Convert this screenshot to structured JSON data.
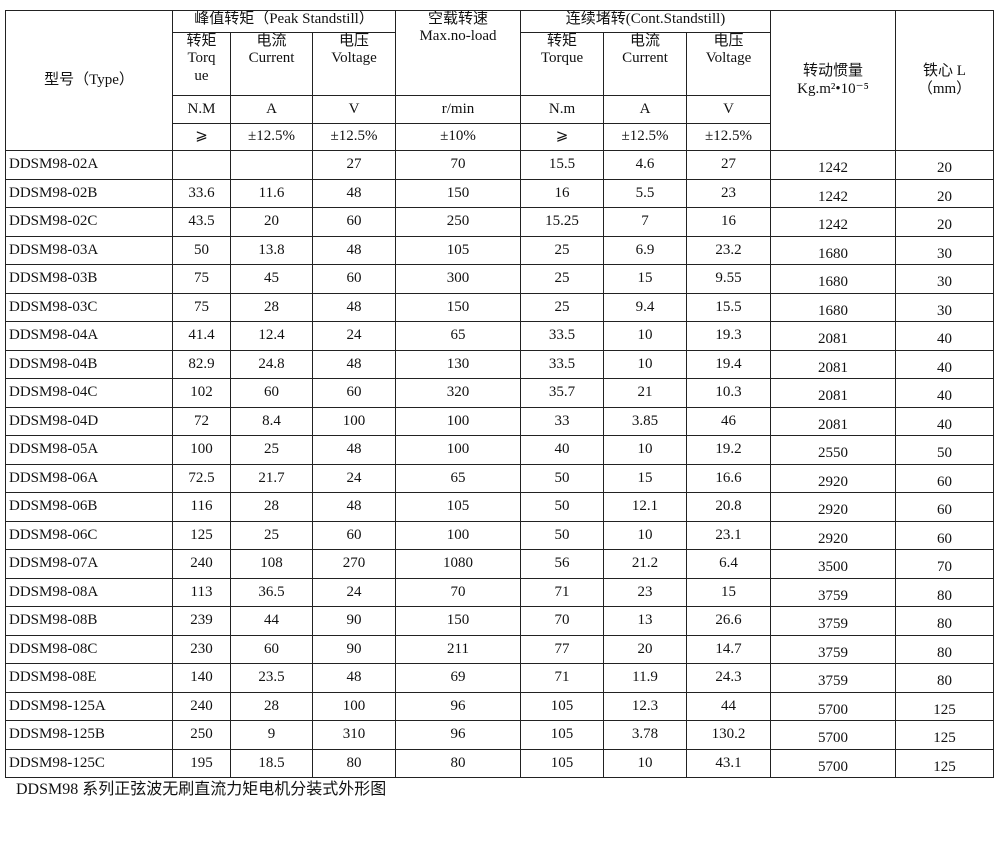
{
  "header": {
    "type": "型号（Type）",
    "peak": "峰值转矩（Peak Standstill）",
    "noload_cn": "空载转速",
    "noload_en": "Max.no-load",
    "cont": "连续堵转(Cont.Standstill)",
    "inertia_cn": "转动惯量",
    "inertia_en": "Kg.m²•10⁻⁵",
    "core_cn": "铁心 L",
    "core_en": "（mm）",
    "peak_torque": "转矩 Torq ue",
    "peak_current": "电流 Current",
    "peak_voltage": "电压 Voltage",
    "cont_torque": "转矩 Torque",
    "cont_current": "电流 Current",
    "cont_voltage": "电压 Voltage",
    "units": [
      "N.M",
      "A",
      "V",
      "r/min",
      "N.m",
      "A",
      "V"
    ],
    "tolerances": [
      "⩾",
      "±12.5%",
      "±12.5%",
      "±10%",
      "⩾",
      "±12.5%",
      "±12.5%"
    ]
  },
  "rows": [
    [
      "DDSM98-02A",
      "",
      "",
      "27",
      "70",
      "15.5",
      "4.6",
      "27",
      "1242",
      "20"
    ],
    [
      "DDSM98-02B",
      "33.6",
      "11.6",
      "48",
      "150",
      "16",
      "5.5",
      "23",
      "1242",
      "20"
    ],
    [
      "DDSM98-02C",
      "43.5",
      "20",
      "60",
      "250",
      "15.25",
      "7",
      "16",
      "1242",
      "20"
    ],
    [
      "DDSM98-03A",
      "50",
      "13.8",
      "48",
      "105",
      "25",
      "6.9",
      "23.2",
      "1680",
      "30"
    ],
    [
      "DDSM98-03B",
      "75",
      "45",
      "60",
      "300",
      "25",
      "15",
      "9.55",
      "1680",
      "30"
    ],
    [
      "DDSM98-03C",
      "75",
      "28",
      "48",
      "150",
      "25",
      "9.4",
      "15.5",
      "1680",
      "30"
    ],
    [
      "DDSM98-04A",
      "41.4",
      "12.4",
      "24",
      "65",
      "33.5",
      "10",
      "19.3",
      "2081",
      "40"
    ],
    [
      "DDSM98-04B",
      "82.9",
      "24.8",
      "48",
      "130",
      "33.5",
      "10",
      "19.4",
      "2081",
      "40"
    ],
    [
      "DDSM98-04C",
      "102",
      "60",
      "60",
      "320",
      "35.7",
      "21",
      "10.3",
      "2081",
      "40"
    ],
    [
      "DDSM98-04D",
      "72",
      "8.4",
      "100",
      "100",
      "33",
      "3.85",
      "46",
      "2081",
      "40"
    ],
    [
      "DDSM98-05A",
      "100",
      "25",
      "48",
      "100",
      "40",
      "10",
      "19.2",
      "2550",
      "50"
    ],
    [
      "DDSM98-06A",
      "72.5",
      "21.7",
      "24",
      "65",
      "50",
      "15",
      "16.6",
      "2920",
      "60"
    ],
    [
      "DDSM98-06B",
      "116",
      "28",
      "48",
      "105",
      "50",
      "12.1",
      "20.8",
      "2920",
      "60"
    ],
    [
      "DDSM98-06C",
      "125",
      "25",
      "60",
      "100",
      "50",
      "10",
      "23.1",
      "2920",
      "60"
    ],
    [
      "DDSM98-07A",
      "240",
      "108",
      "270",
      "1080",
      "56",
      "21.2",
      "6.4",
      "3500",
      "70"
    ],
    [
      "DDSM98-08A",
      "113",
      "36.5",
      "24",
      "70",
      "71",
      "23",
      "15",
      "3759",
      "80"
    ],
    [
      "DDSM98-08B",
      "239",
      "44",
      "90",
      "150",
      "70",
      "13",
      "26.6",
      "3759",
      "80"
    ],
    [
      "DDSM98-08C",
      "230",
      "60",
      "90",
      "211",
      "77",
      "20",
      "14.7",
      "3759",
      "80"
    ],
    [
      "DDSM98-08E",
      "140",
      "23.5",
      "48",
      "69",
      "71",
      "11.9",
      "24.3",
      "3759",
      "80"
    ],
    [
      "DDSM98-125A",
      "240",
      "28",
      "100",
      "96",
      "105",
      "12.3",
      "44",
      "5700",
      "125"
    ],
    [
      "DDSM98-125B",
      "250",
      "9",
      "310",
      "96",
      "105",
      "3.78",
      "130.2",
      "5700",
      "125"
    ],
    [
      "DDSM98-125C",
      "195",
      "18.5",
      "80",
      "80",
      "105",
      "10",
      "43.1",
      "5700",
      "125"
    ]
  ],
  "caption": "DDSM98 系列正弦波无刷直流力矩电机分装式外形图"
}
